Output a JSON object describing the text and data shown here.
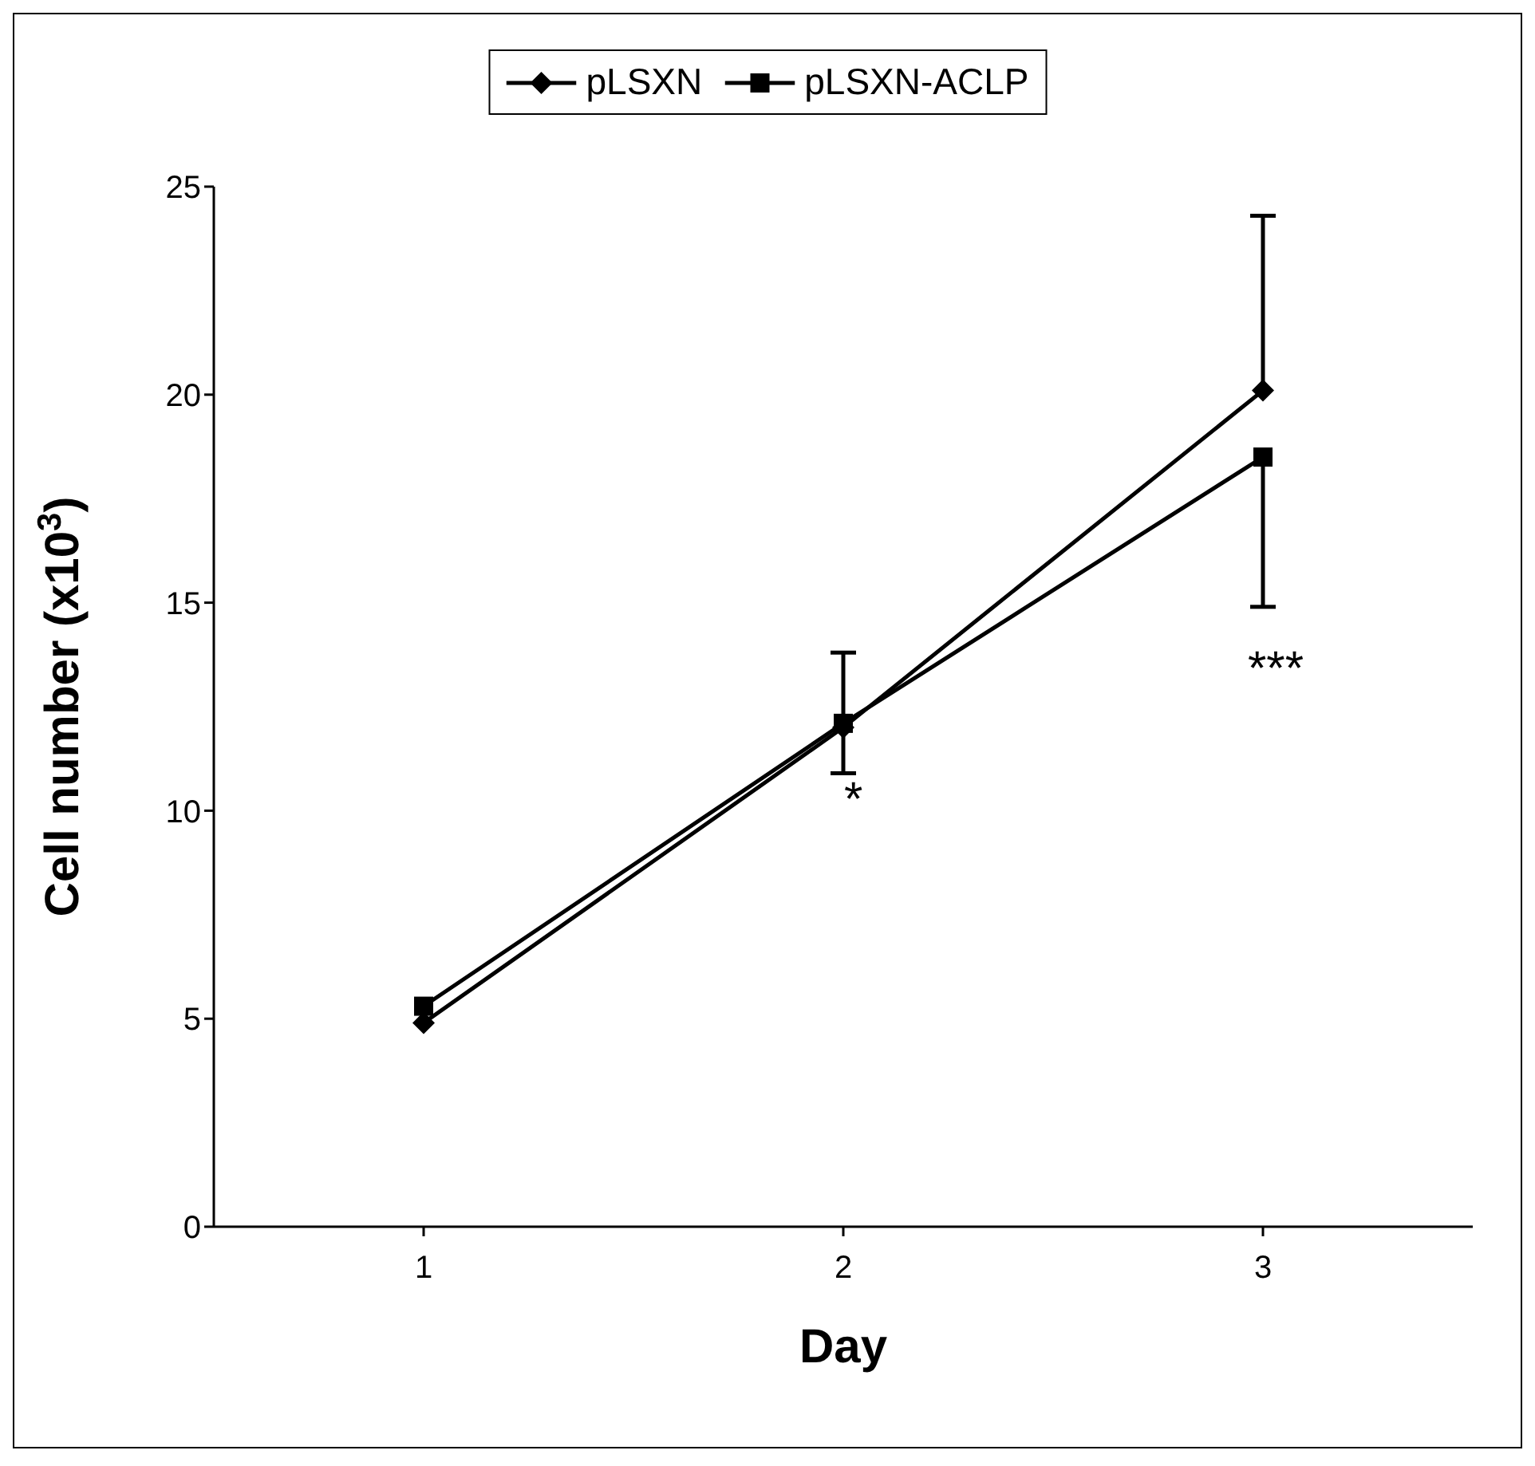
{
  "chart_data": {
    "type": "line",
    "xlabel": "Day",
    "ylabel": "Cell number  (x10$^{3}$)",
    "categories": [
      "1",
      "2",
      "3"
    ],
    "series": [
      {
        "name": "pLSXN",
        "color": "#000000",
        "marker": "diamond",
        "values": [
          4.9,
          12.0,
          20.1
        ],
        "errors": [
          null,
          null,
          [
            20.1,
            24.3
          ]
        ]
      },
      {
        "name": "pLSXN-ACLP",
        "color": "#000000",
        "marker": "square",
        "values": [
          5.3,
          12.1,
          18.5
        ],
        "errors": [
          null,
          [
            10.9,
            13.8
          ],
          [
            14.9,
            18.5
          ]
        ]
      }
    ],
    "ylim": [
      0,
      25
    ],
    "yticks": [
      0,
      5,
      10,
      15,
      20,
      25
    ],
    "legend": "top",
    "annotations": [
      "*",
      "***"
    ]
  }
}
